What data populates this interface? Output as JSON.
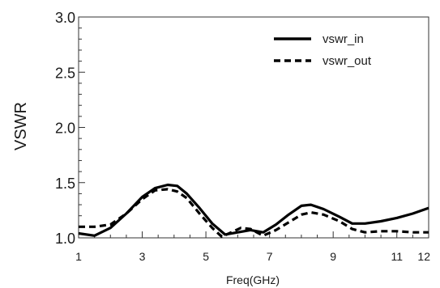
{
  "chart_data": {
    "type": "line",
    "title": "",
    "xlabel": "Freq(GHz)",
    "ylabel": "VSWR",
    "xlim": [
      1,
      12
    ],
    "ylim": [
      1.0,
      3.0
    ],
    "x_ticks": [
      1,
      3,
      5,
      7,
      9,
      11,
      12
    ],
    "x_tick_labels": [
      "1",
      "3",
      "5",
      "7",
      "9",
      "11",
      "12"
    ],
    "y_ticks": [
      1.0,
      1.5,
      2.0,
      2.5,
      3.0
    ],
    "y_tick_labels": [
      "1.0",
      "1.5",
      "2.0",
      "2.5",
      "3.0"
    ],
    "grid": false,
    "legend_position": "top-right",
    "series": [
      {
        "name": "vswr_in",
        "style": "solid",
        "color": "#000000",
        "x": [
          1,
          1.5,
          2,
          2.5,
          3,
          3.4,
          3.8,
          4.1,
          4.4,
          4.8,
          5.2,
          5.6,
          6.0,
          6.4,
          6.8,
          7.2,
          7.6,
          8.0,
          8.3,
          8.7,
          9.2,
          9.6,
          10.0,
          10.5,
          11.0,
          11.5,
          12.0
        ],
        "y": [
          1.04,
          1.02,
          1.09,
          1.22,
          1.37,
          1.45,
          1.48,
          1.47,
          1.4,
          1.27,
          1.13,
          1.03,
          1.05,
          1.07,
          1.05,
          1.12,
          1.21,
          1.29,
          1.3,
          1.26,
          1.19,
          1.13,
          1.13,
          1.15,
          1.18,
          1.22,
          1.27
        ]
      },
      {
        "name": "vswr_out",
        "style": "dashed",
        "color": "#000000",
        "x": [
          1,
          1.5,
          2,
          2.5,
          3,
          3.4,
          3.8,
          4.1,
          4.4,
          4.8,
          5.2,
          5.5,
          5.8,
          6.1,
          6.4,
          6.8,
          7.2,
          7.6,
          8.0,
          8.3,
          8.7,
          9.2,
          9.6,
          10.0,
          10.5,
          11.0,
          11.5,
          12.0
        ],
        "y": [
          1.1,
          1.1,
          1.12,
          1.22,
          1.35,
          1.43,
          1.44,
          1.42,
          1.36,
          1.22,
          1.09,
          1.01,
          1.05,
          1.09,
          1.08,
          1.02,
          1.07,
          1.14,
          1.21,
          1.23,
          1.21,
          1.15,
          1.08,
          1.05,
          1.06,
          1.06,
          1.05,
          1.05
        ]
      }
    ]
  }
}
